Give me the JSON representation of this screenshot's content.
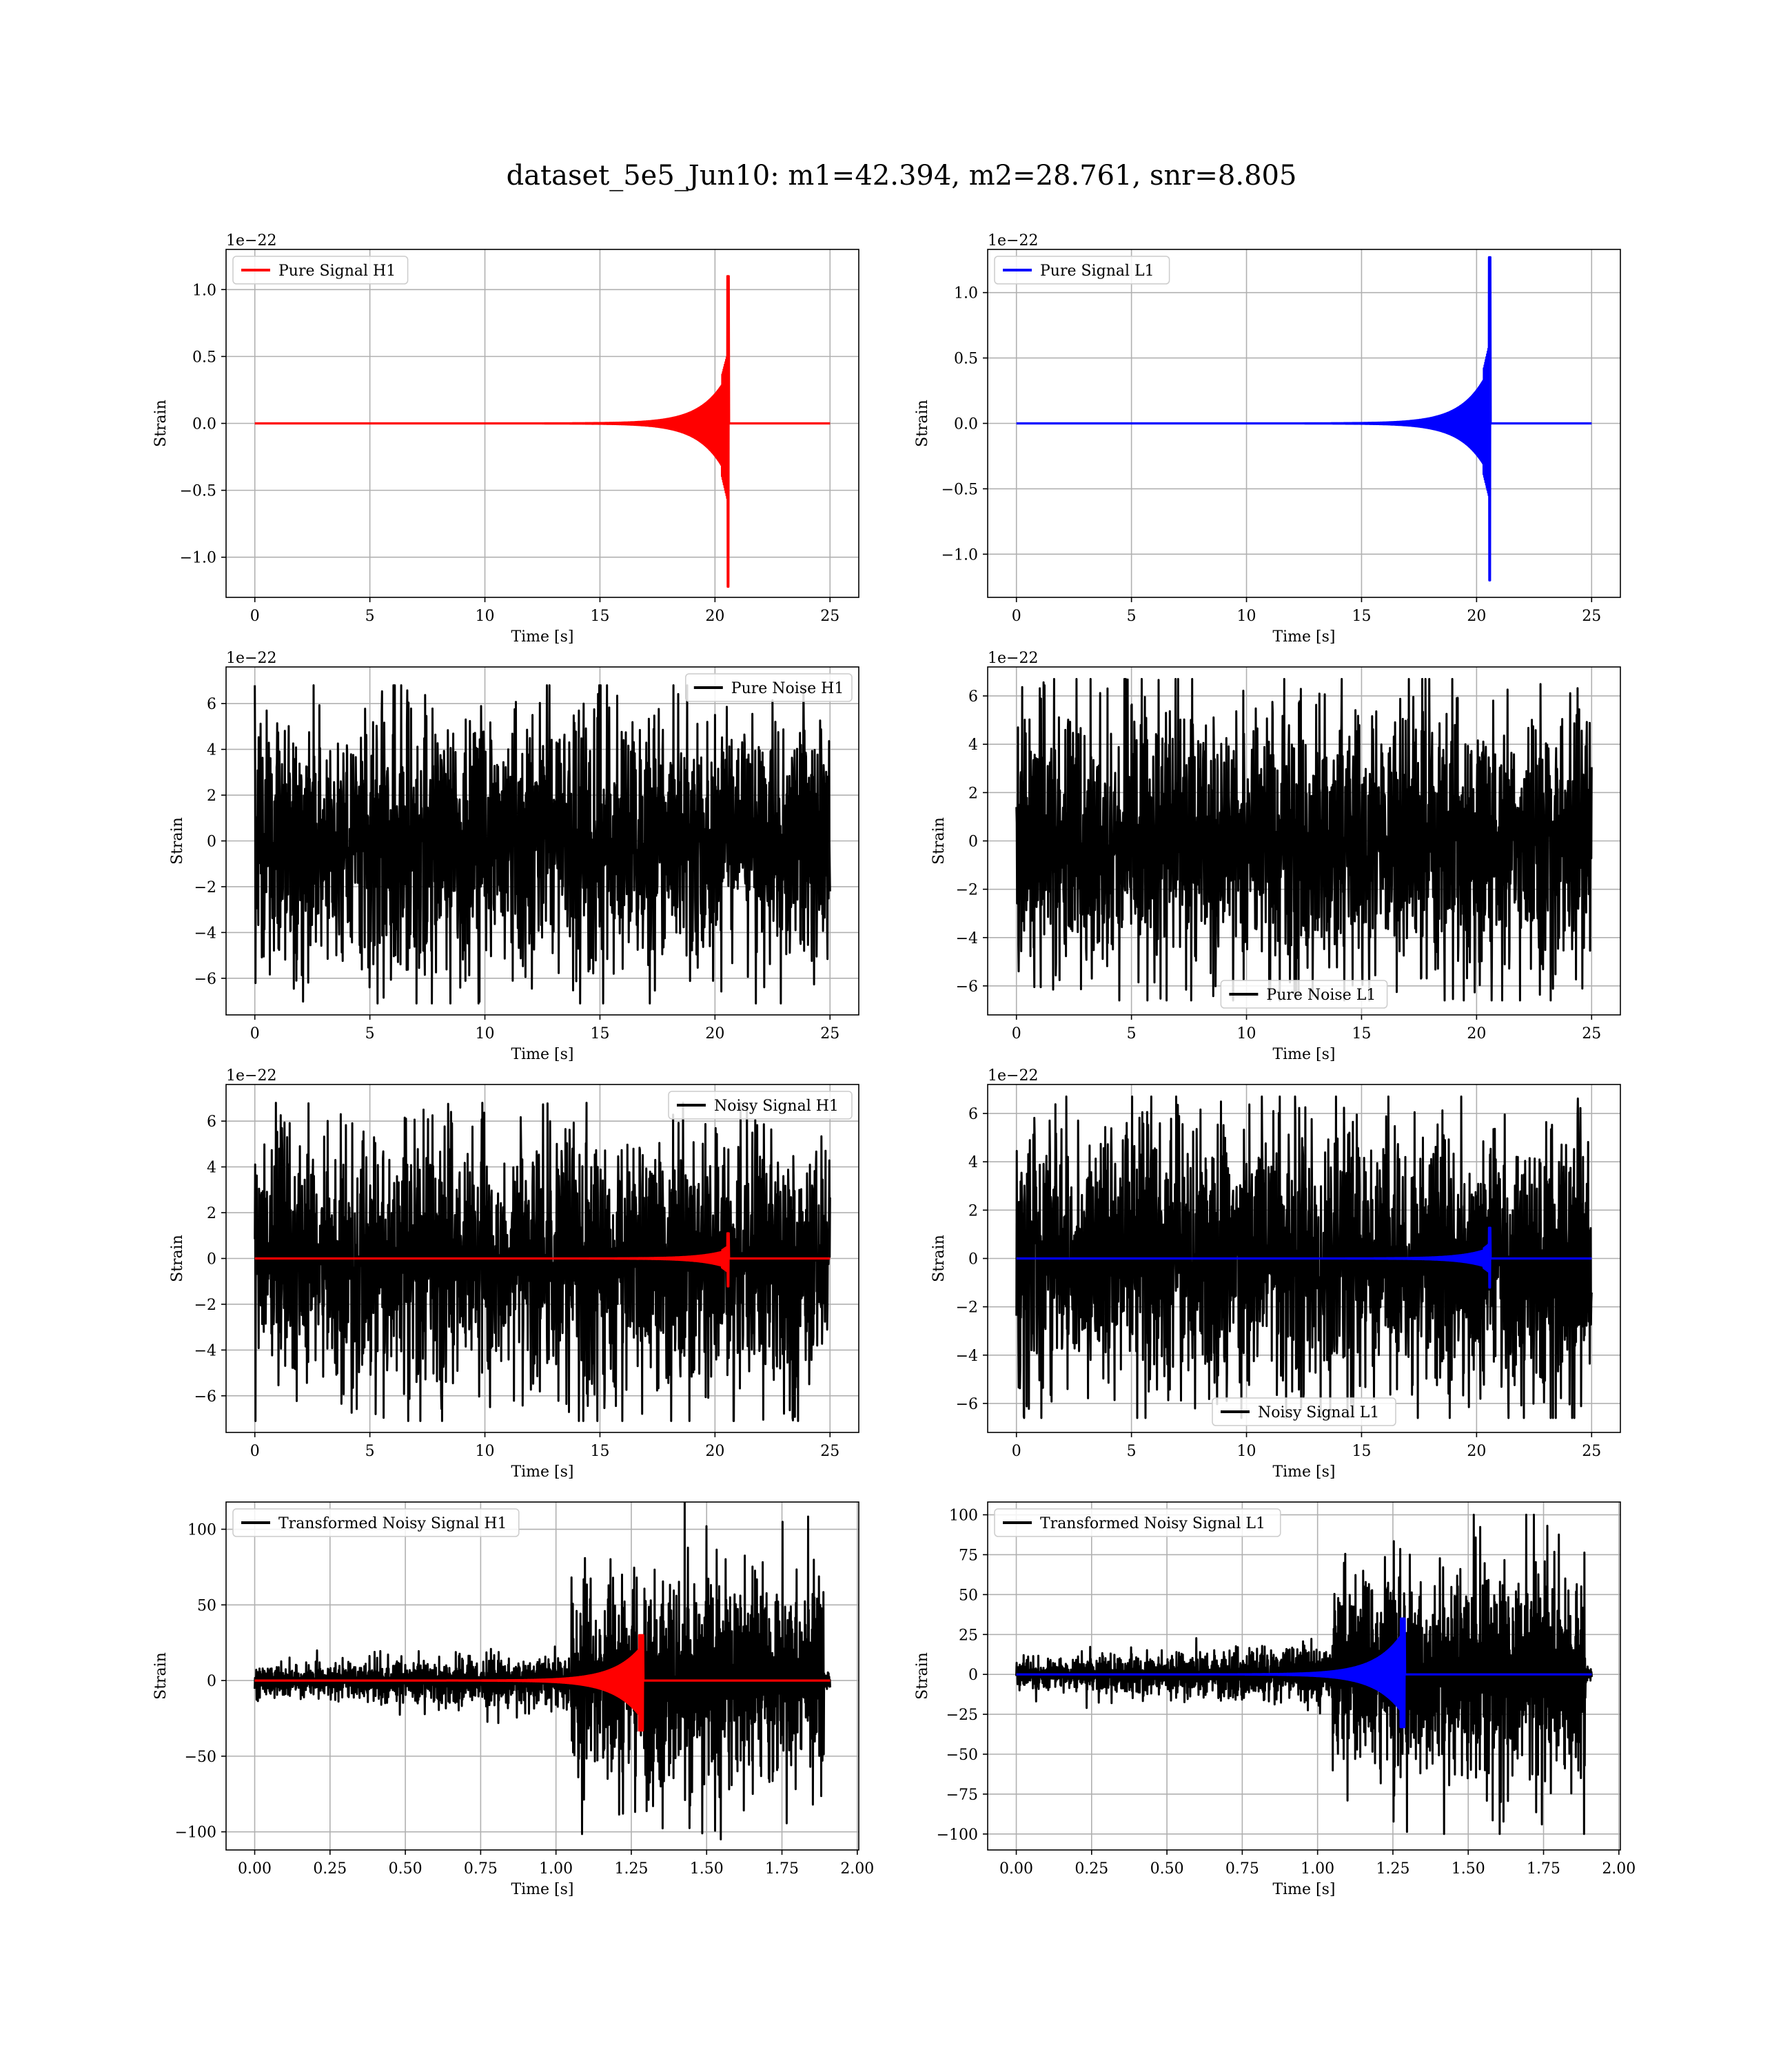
{
  "figure": {
    "suptitle": "dataset_5e5_Jun10: m1=42.394, m2=28.761, snr=8.805"
  },
  "colors": {
    "h1_signal": "#ff0000",
    "l1_signal": "#0000ff",
    "noise": "#000000",
    "grid": "#b0b0b0"
  },
  "chart_data": [
    {
      "id": "pure-signal-h1",
      "type": "line",
      "xlabel": "Time [s]",
      "ylabel": "Strain",
      "offset_text": "1e−22",
      "xlim": [
        -1.25,
        26.25
      ],
      "ylim": [
        -1.3,
        1.3
      ],
      "xticks": [
        0,
        5,
        10,
        15,
        20,
        25
      ],
      "xticklabels": [
        "0",
        "5",
        "10",
        "15",
        "20",
        "25"
      ],
      "yticks": [
        -1.0,
        -0.5,
        0.0,
        0.5,
        1.0
      ],
      "yticklabels": [
        "−1.0",
        "−0.5",
        "0.0",
        "0.5",
        "1.0"
      ],
      "legend_loc": "upper-left",
      "grid": true,
      "series": [
        {
          "name": "Pure Signal H1",
          "color": "#ff0000",
          "kind": "chirp",
          "x_range": [
            0,
            25
          ],
          "merger": 20.6,
          "peak": 1.1,
          "trough": -1.22
        }
      ]
    },
    {
      "id": "pure-signal-l1",
      "type": "line",
      "xlabel": "Time [s]",
      "ylabel": "Strain",
      "offset_text": "1e−22",
      "xlim": [
        -1.25,
        26.25
      ],
      "ylim": [
        -1.33,
        1.33
      ],
      "xticks": [
        0,
        5,
        10,
        15,
        20,
        25
      ],
      "xticklabels": [
        "0",
        "5",
        "10",
        "15",
        "20",
        "25"
      ],
      "yticks": [
        -1.0,
        -0.5,
        0.0,
        0.5,
        1.0
      ],
      "yticklabels": [
        "−1.0",
        "−0.5",
        "0.0",
        "0.5",
        "1.0"
      ],
      "legend_loc": "upper-left",
      "grid": true,
      "series": [
        {
          "name": "Pure Signal L1",
          "color": "#0000ff",
          "kind": "chirp",
          "x_range": [
            0,
            25
          ],
          "merger": 20.6,
          "peak": 1.27,
          "trough": -1.2
        }
      ]
    },
    {
      "id": "pure-noise-h1",
      "type": "line",
      "xlabel": "Time [s]",
      "ylabel": "Strain",
      "offset_text": "1e−22",
      "xlim": [
        -1.25,
        26.25
      ],
      "ylim": [
        -7.6,
        7.6
      ],
      "xticks": [
        0,
        5,
        10,
        15,
        20,
        25
      ],
      "xticklabels": [
        "0",
        "5",
        "10",
        "15",
        "20",
        "25"
      ],
      "yticks": [
        -6,
        -4,
        -2,
        0,
        2,
        4,
        6
      ],
      "yticklabels": [
        "−6",
        "−4",
        "−2",
        "0",
        "2",
        "4",
        "6"
      ],
      "legend_loc": "upper-right",
      "grid": true,
      "series": [
        {
          "name": "Pure Noise H1",
          "color": "#000000",
          "kind": "noise",
          "x_range": [
            0,
            25
          ],
          "core": 3.3,
          "max": 6.8,
          "min": -7.1
        }
      ]
    },
    {
      "id": "pure-noise-l1",
      "type": "line",
      "xlabel": "Time [s]",
      "ylabel": "Strain",
      "offset_text": "1e−22",
      "xlim": [
        -1.25,
        26.25
      ],
      "ylim": [
        -7.2,
        7.2
      ],
      "xticks": [
        0,
        5,
        10,
        15,
        20,
        25
      ],
      "xticklabels": [
        "0",
        "5",
        "10",
        "15",
        "20",
        "25"
      ],
      "yticks": [
        -6,
        -4,
        -2,
        0,
        2,
        4,
        6
      ],
      "yticklabels": [
        "−6",
        "−4",
        "−2",
        "0",
        "2",
        "4",
        "6"
      ],
      "legend_loc": "lower-center",
      "grid": true,
      "series": [
        {
          "name": "Pure Noise L1",
          "color": "#000000",
          "kind": "noise",
          "x_range": [
            0,
            25
          ],
          "core": 3.3,
          "max": 6.7,
          "min": -6.6
        }
      ]
    },
    {
      "id": "noisy-signal-h1",
      "type": "line",
      "xlabel": "Time [s]",
      "ylabel": "Strain",
      "offset_text": "1e−22",
      "xlim": [
        -1.25,
        26.25
      ],
      "ylim": [
        -7.6,
        7.6
      ],
      "xticks": [
        0,
        5,
        10,
        15,
        20,
        25
      ],
      "xticklabels": [
        "0",
        "5",
        "10",
        "15",
        "20",
        "25"
      ],
      "yticks": [
        -6,
        -4,
        -2,
        0,
        2,
        4,
        6
      ],
      "yticklabels": [
        "−6",
        "−4",
        "−2",
        "0",
        "2",
        "4",
        "6"
      ],
      "legend_loc": "upper-right",
      "grid": true,
      "series": [
        {
          "name": "Noisy Signal H1",
          "color": "#000000",
          "kind": "noise",
          "x_range": [
            0,
            25
          ],
          "core": 3.3,
          "max": 6.8,
          "min": -7.1
        },
        {
          "color": "#ff0000",
          "kind": "chirp",
          "x_range": [
            0,
            25
          ],
          "merger": 20.6,
          "peak": 1.1,
          "trough": -1.22
        }
      ]
    },
    {
      "id": "noisy-signal-l1",
      "type": "line",
      "xlabel": "Time [s]",
      "ylabel": "Strain",
      "offset_text": "1e−22",
      "xlim": [
        -1.25,
        26.25
      ],
      "ylim": [
        -7.2,
        7.2
      ],
      "xticks": [
        0,
        5,
        10,
        15,
        20,
        25
      ],
      "xticklabels": [
        "0",
        "5",
        "10",
        "15",
        "20",
        "25"
      ],
      "yticks": [
        -6,
        -4,
        -2,
        0,
        2,
        4,
        6
      ],
      "yticklabels": [
        "−6",
        "−4",
        "−2",
        "0",
        "2",
        "4",
        "6"
      ],
      "legend_loc": "lower-center",
      "grid": true,
      "series": [
        {
          "name": "Noisy Signal L1",
          "color": "#000000",
          "kind": "noise",
          "x_range": [
            0,
            25
          ],
          "core": 3.3,
          "max": 6.7,
          "min": -6.6
        },
        {
          "color": "#0000ff",
          "kind": "chirp",
          "x_range": [
            0,
            25
          ],
          "merger": 20.6,
          "peak": 1.27,
          "trough": -1.2
        }
      ]
    },
    {
      "id": "transformed-noisy-signal-h1",
      "type": "line",
      "xlabel": "Time [s]",
      "ylabel": "Strain",
      "offset_text": "",
      "xlim": [
        -0.095,
        2.005
      ],
      "ylim": [
        -112,
        118
      ],
      "xticks": [
        0,
        0.25,
        0.5,
        0.75,
        1.0,
        1.25,
        1.5,
        1.75,
        2.0
      ],
      "xticklabels": [
        "0.00",
        "0.25",
        "0.50",
        "0.75",
        "1.00",
        "1.25",
        "1.50",
        "1.75",
        "2.00"
      ],
      "yticks": [
        -100,
        -50,
        0,
        50,
        100
      ],
      "yticklabels": [
        "−100",
        "−50",
        "0",
        "50",
        "100"
      ],
      "legend_loc": "upper-left",
      "grid": true,
      "series": [
        {
          "name": "Transformed Noisy Signal H1",
          "color": "#000000",
          "kind": "whitened-noise",
          "x_range": [
            0,
            1.91
          ],
          "max": 120,
          "min": -105
        },
        {
          "color": "#ff0000",
          "kind": "whitened-chirp",
          "x_range": [
            0,
            1.91
          ],
          "merger": 1.29,
          "peak": 30,
          "trough": -33
        }
      ]
    },
    {
      "id": "transformed-noisy-signal-l1",
      "type": "line",
      "xlabel": "Time [s]",
      "ylabel": "Strain",
      "offset_text": "",
      "xlim": [
        -0.095,
        2.005
      ],
      "ylim": [
        -110,
        108
      ],
      "xticks": [
        0,
        0.25,
        0.5,
        0.75,
        1.0,
        1.25,
        1.5,
        1.75,
        2.0
      ],
      "xticklabels": [
        "0.00",
        "0.25",
        "0.50",
        "0.75",
        "1.00",
        "1.25",
        "1.50",
        "1.75",
        "2.00"
      ],
      "yticks": [
        -100,
        -75,
        -50,
        -25,
        0,
        25,
        50,
        75,
        100
      ],
      "yticklabels": [
        "−100",
        "−75",
        "−50",
        "−25",
        "0",
        "25",
        "50",
        "75",
        "100"
      ],
      "legend_loc": "upper-left",
      "grid": true,
      "series": [
        {
          "name": "Transformed Noisy Signal L1",
          "color": "#000000",
          "kind": "whitened-noise",
          "x_range": [
            0,
            1.91
          ],
          "max": 100,
          "min": -100
        },
        {
          "color": "#0000ff",
          "kind": "whitened-chirp",
          "x_range": [
            0,
            1.91
          ],
          "merger": 1.29,
          "peak": 35,
          "trough": -33
        }
      ]
    }
  ]
}
